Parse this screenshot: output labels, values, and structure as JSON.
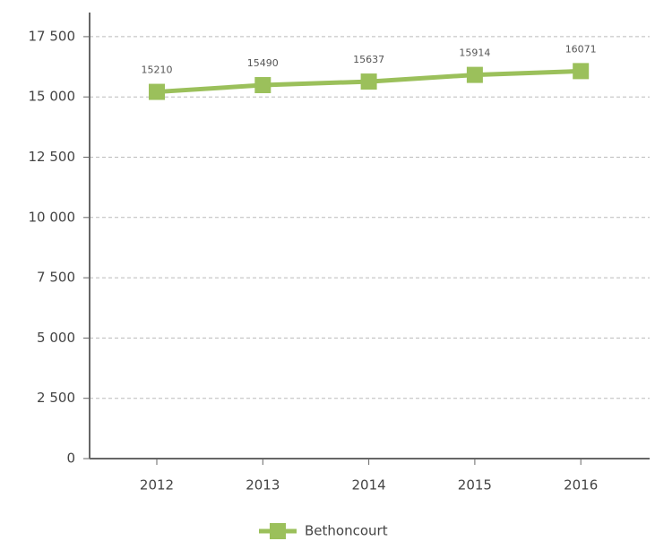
{
  "chart_data": {
    "type": "line",
    "categories": [
      "2012",
      "2013",
      "2014",
      "2015",
      "2016"
    ],
    "series": [
      {
        "name": "Bethoncourt",
        "color": "#9bc05b",
        "values": [
          15210,
          15490,
          15637,
          15914,
          16071
        ]
      }
    ],
    "ylim": [
      0,
      18500
    ],
    "yticks": [
      0,
      {
        "value": 2500,
        "label": "2 500"
      },
      {
        "value": 5000,
        "label": "5 000"
      },
      {
        "value": 7500,
        "label": "7 500"
      },
      {
        "value": 10000,
        "label": "10 000"
      },
      {
        "value": 12500,
        "label": "12 500"
      },
      {
        "value": 15000,
        "label": "15 000"
      },
      {
        "value": 17500,
        "label": "17 500"
      }
    ],
    "grid": true,
    "legend": "bottom"
  }
}
